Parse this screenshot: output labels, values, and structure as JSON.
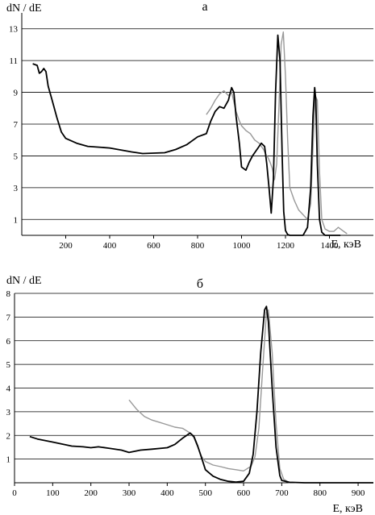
{
  "chart_data": [
    {
      "type": "line",
      "title": "а",
      "ylabel": "dN / dE",
      "xlabel": "E,  кэВ",
      "xlim": [
        0,
        1600
      ],
      "ylim": [
        0,
        14
      ],
      "x_ticks": [
        200,
        400,
        600,
        800,
        1000,
        1200,
        1400
      ],
      "y_ticks": [
        1,
        3,
        5,
        7,
        9,
        11,
        13
      ],
      "grid": "horizontal",
      "series": [
        {
          "color": "#000000",
          "x": [
            50,
            70,
            80,
            90,
            100,
            110,
            120,
            140,
            160,
            180,
            200,
            250,
            300,
            400,
            500,
            550,
            650,
            700,
            750,
            800,
            840,
            860,
            880,
            900,
            920,
            940,
            955,
            965,
            975,
            990,
            1000,
            1020,
            1035,
            1050,
            1070,
            1090,
            1105,
            1115,
            1125,
            1135,
            1145,
            1155,
            1165,
            1175,
            1185,
            1192,
            1200,
            1210,
            1220,
            1240,
            1260,
            1280,
            1300,
            1315,
            1325,
            1333,
            1338,
            1345,
            1355,
            1365,
            1380,
            1400,
            1450
          ],
          "y": [
            10.8,
            10.7,
            10.2,
            10.3,
            10.5,
            10.3,
            9.4,
            8.4,
            7.4,
            6.5,
            6.1,
            5.8,
            5.6,
            5.5,
            5.25,
            5.15,
            5.2,
            5.4,
            5.7,
            6.2,
            6.4,
            7.2,
            7.8,
            8.1,
            8.0,
            8.5,
            9.3,
            9.0,
            7.5,
            5.8,
            4.3,
            4.1,
            4.6,
            5.0,
            5.4,
            5.8,
            5.6,
            4.5,
            3.0,
            1.4,
            3.5,
            9.0,
            12.6,
            11.0,
            5.0,
            1.5,
            0.3,
            0.05,
            0.0,
            0.0,
            0.0,
            0.0,
            0.5,
            3.0,
            7.5,
            9.3,
            8.5,
            4.5,
            1.0,
            0.2,
            0.0,
            0.0,
            0.0
          ]
        },
        {
          "color": "#999999",
          "x": [
            840,
            860,
            880,
            900,
            920,
            940,
            955,
            965,
            975,
            990,
            1000,
            1020,
            1040,
            1060,
            1080,
            1100,
            1110,
            1120,
            1130,
            1140,
            1150,
            1160,
            1170,
            1180,
            1190,
            1200,
            1210,
            1220,
            1240,
            1260,
            1280,
            1300,
            1315,
            1325,
            1335,
            1345,
            1355,
            1365,
            1380,
            1400,
            1420,
            1440,
            1460,
            1480
          ],
          "y": [
            7.6,
            8.0,
            8.5,
            8.9,
            9.1,
            8.8,
            9.0,
            8.4,
            7.8,
            7.2,
            6.9,
            6.6,
            6.4,
            6.0,
            5.8,
            5.4,
            5.1,
            4.9,
            4.6,
            4.2,
            3.5,
            4.5,
            8.0,
            12.0,
            12.8,
            10.0,
            6.0,
            3.0,
            2.2,
            1.6,
            1.3,
            1.0,
            2.0,
            5.5,
            8.8,
            8.5,
            4.0,
            1.0,
            0.4,
            0.25,
            0.25,
            0.5,
            0.3,
            0.1
          ]
        }
      ]
    },
    {
      "type": "line",
      "title": "б",
      "ylabel": "dN / dE",
      "xlabel": "E,  кэВ",
      "xlim": [
        0,
        940
      ],
      "ylim": [
        0,
        8
      ],
      "x_ticks": [
        0,
        100,
        200,
        300,
        400,
        500,
        600,
        700,
        800,
        900
      ],
      "y_ticks": [
        1,
        2,
        3,
        4,
        5,
        6,
        7,
        8
      ],
      "grid": "horizontal",
      "series": [
        {
          "color": "#000000",
          "x": [
            40,
            60,
            100,
            150,
            180,
            200,
            220,
            250,
            280,
            300,
            330,
            360,
            400,
            420,
            440,
            460,
            470,
            480,
            490,
            500,
            520,
            540,
            560,
            580,
            600,
            615,
            625,
            635,
            645,
            655,
            660,
            665,
            675,
            685,
            695,
            700,
            720,
            760,
            800,
            940
          ],
          "y": [
            1.95,
            1.85,
            1.72,
            1.55,
            1.52,
            1.48,
            1.52,
            1.45,
            1.38,
            1.28,
            1.38,
            1.42,
            1.48,
            1.62,
            1.88,
            2.1,
            1.95,
            1.55,
            1.05,
            0.55,
            0.28,
            0.14,
            0.06,
            0.03,
            0.06,
            0.4,
            1.2,
            3.0,
            5.5,
            7.3,
            7.45,
            6.8,
            4.0,
            1.5,
            0.3,
            0.1,
            0.02,
            0.0,
            0.0,
            0.0
          ]
        },
        {
          "color": "#999999",
          "x": [
            300,
            320,
            340,
            360,
            380,
            400,
            420,
            440,
            460,
            470,
            480,
            490,
            500,
            520,
            540,
            560,
            580,
            600,
            620,
            630,
            640,
            650,
            660,
            665,
            675,
            685,
            695,
            705,
            720
          ],
          "y": [
            3.5,
            3.1,
            2.8,
            2.65,
            2.55,
            2.45,
            2.35,
            2.3,
            2.1,
            1.9,
            1.5,
            1.1,
            0.9,
            0.75,
            0.68,
            0.6,
            0.55,
            0.5,
            0.7,
            1.1,
            2.3,
            4.8,
            7.2,
            7.3,
            5.5,
            2.5,
            0.6,
            0.15,
            0.0
          ]
        }
      ]
    }
  ]
}
